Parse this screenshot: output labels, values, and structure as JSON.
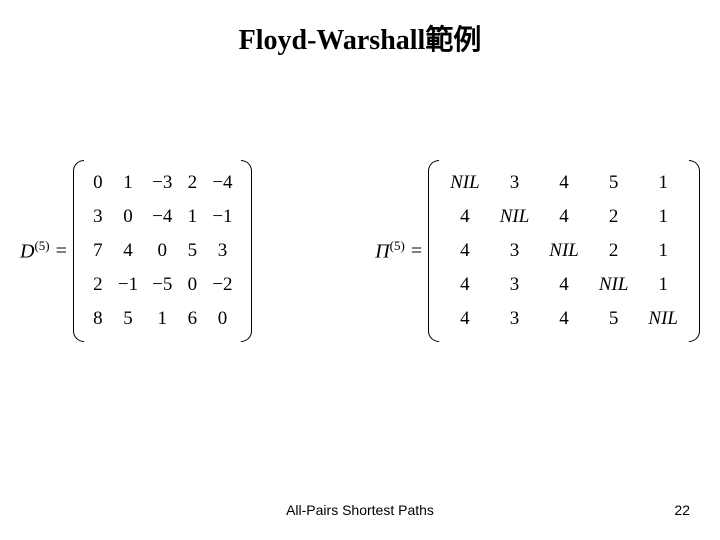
{
  "title": "Floyd-Warshall範例",
  "d_matrix": {
    "label_base": "D",
    "label_sup": "(5)",
    "rows": [
      [
        "0",
        "1",
        "−3",
        "2",
        "−4"
      ],
      [
        "3",
        "0",
        "−4",
        "1",
        "−1"
      ],
      [
        "7",
        "4",
        "0",
        "5",
        "3"
      ],
      [
        "2",
        "−1",
        "−5",
        "0",
        "−2"
      ],
      [
        "8",
        "5",
        "1",
        "6",
        "0"
      ]
    ]
  },
  "pi_matrix": {
    "label_base": "Π",
    "label_sup": "(5)",
    "rows": [
      [
        "NIL",
        "3",
        "4",
        "5",
        "1"
      ],
      [
        "4",
        "NIL",
        "4",
        "2",
        "1"
      ],
      [
        "4",
        "3",
        "NIL",
        "2",
        "1"
      ],
      [
        "4",
        "3",
        "4",
        "NIL",
        "1"
      ],
      [
        "4",
        "3",
        "4",
        "5",
        "NIL"
      ]
    ]
  },
  "footer": "All-Pairs Shortest Paths",
  "page": "22",
  "colors": {
    "bg": "#ffffff",
    "text": "#000000"
  },
  "fonts": {
    "title_size": 28,
    "matrix_cell_size": 19,
    "label_size": 20,
    "footer_size": 14
  }
}
